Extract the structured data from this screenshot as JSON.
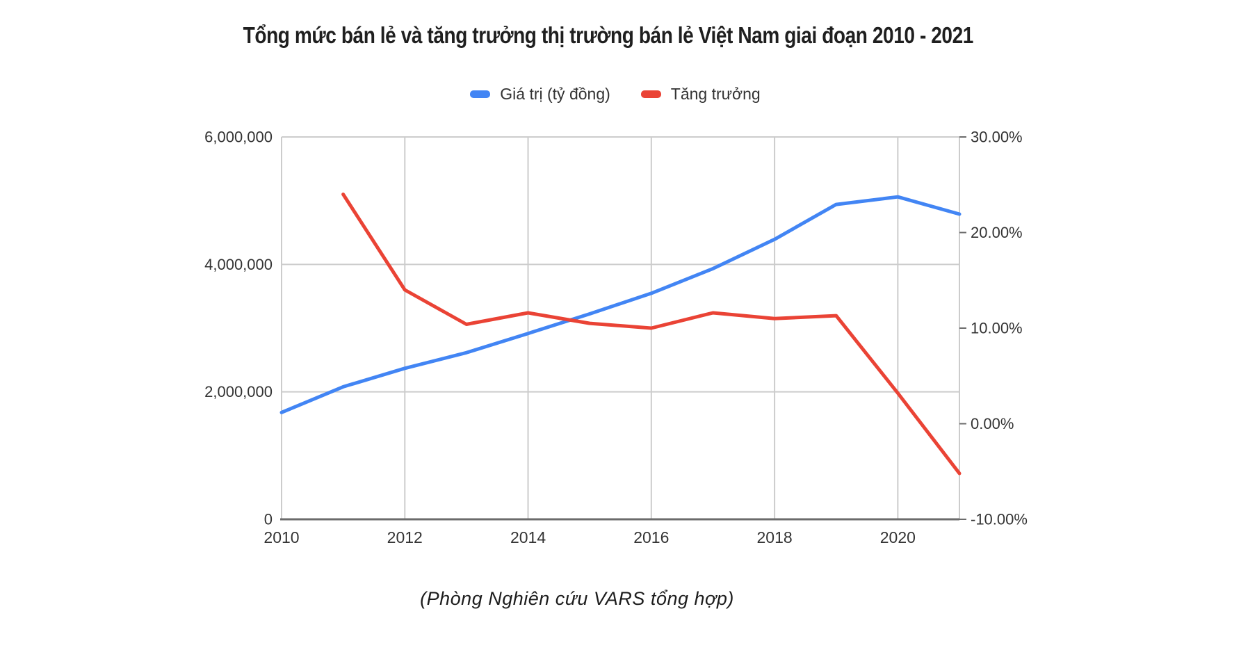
{
  "title": "Tổng mức bán lẻ và tăng trưởng thị trường bán lẻ Việt Nam giai đoạn 2010 - 2021",
  "caption": "(Phòng Nghiên cứu VARS tổng hợp)",
  "legend": [
    {
      "label": "Giá trị (tỷ đồng)",
      "color": "#4285f4"
    },
    {
      "label": "Tăng trưởng",
      "color": "#ea4335"
    }
  ],
  "chart_data": {
    "type": "line",
    "title": "Tổng mức bán lẻ và tăng trưởng thị trường bán lẻ Việt Nam giai đoạn 2010 - 2021",
    "x": [
      2010,
      2011,
      2012,
      2013,
      2014,
      2015,
      2016,
      2017,
      2018,
      2019,
      2020,
      2021
    ],
    "series": [
      {
        "name": "Giá trị (tỷ đồng)",
        "axis": "left",
        "color": "#4285f4",
        "values": [
          1677000,
          2079500,
          2369100,
          2615200,
          2916200,
          3223200,
          3546000,
          3934200,
          4393000,
          4940400,
          5059800,
          4789500
        ]
      },
      {
        "name": "Tăng trưởng",
        "axis": "right",
        "color": "#ea4335",
        "values": [
          null,
          24.0,
          14.0,
          10.4,
          11.6,
          10.5,
          10.0,
          11.6,
          11.0,
          11.3,
          3.2,
          -5.2
        ]
      }
    ],
    "left_axis": {
      "min": 0,
      "max": 6000000,
      "tick_values": [
        0,
        2000000,
        4000000,
        6000000
      ],
      "tick_labels": [
        "0",
        "2,000,000",
        "4,000,000",
        "6,000,000"
      ]
    },
    "right_axis": {
      "min": -10,
      "max": 30,
      "tick_values": [
        -10,
        0,
        10,
        20,
        30
      ],
      "tick_labels": [
        "-10.00%",
        "0.00%",
        "10.00%",
        "20.00%",
        "30.00%"
      ]
    },
    "x_axis": {
      "tick_values": [
        2010,
        2012,
        2014,
        2016,
        2018,
        2020
      ],
      "tick_labels": [
        "2010",
        "2012",
        "2014",
        "2016",
        "2018",
        "2020"
      ]
    },
    "grid": true,
    "legend_position": "top",
    "colors": {
      "gridline": "#cccccc",
      "axis_line": "#6b6b6b",
      "tick_label": "#333333"
    }
  }
}
